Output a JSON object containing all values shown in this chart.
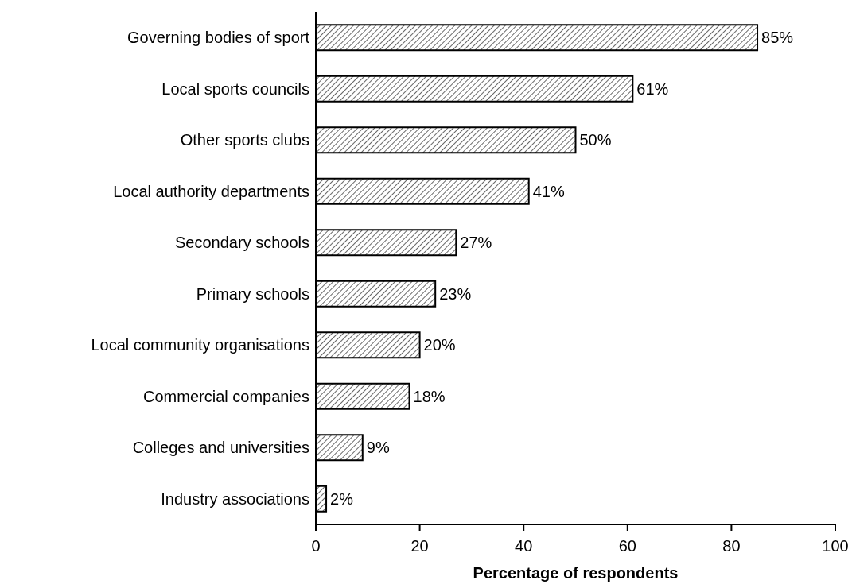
{
  "chart_data": {
    "type": "bar",
    "orientation": "horizontal",
    "xlabel": "Percentage of respondents",
    "categories": [
      "Governing bodies of sport",
      "Local sports councils",
      "Other sports clubs",
      "Local authority departments",
      "Secondary schools",
      "Primary schools",
      "Local community organisations",
      "Commercial companies",
      "Colleges and universities",
      "Industry associations"
    ],
    "values": [
      85,
      61,
      50,
      41,
      27,
      23,
      20,
      18,
      9,
      2
    ],
    "value_labels": [
      "85%",
      "61%",
      "50%",
      "41%",
      "27%",
      "23%",
      "20%",
      "18%",
      "9%",
      "2%"
    ],
    "color": "#000000",
    "xlim": [
      0,
      100
    ],
    "xticks": [
      0,
      20,
      40,
      60,
      80,
      100
    ],
    "grid": false,
    "legend": false
  }
}
